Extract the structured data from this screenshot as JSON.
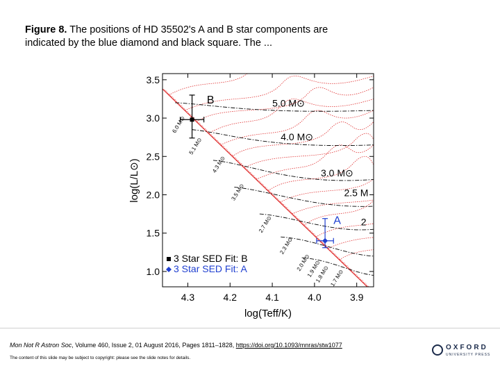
{
  "caption": {
    "label": "Figure 8.",
    "text": "The positions of HD 35502's A and B star components are indicated by the blue diamond and black square. The ..."
  },
  "chart_data": {
    "type": "scatter",
    "title": "",
    "xlabel": "log(Teff/K)",
    "ylabel": "log(L/L⊙)",
    "xlim": [
      4.36,
      3.86
    ],
    "ylim": [
      0.8,
      3.58
    ],
    "x_ticks": [
      4.3,
      4.2,
      4.1,
      4.0,
      3.9
    ],
    "x_tick_labels": [
      "4.3",
      "4.2",
      "4.1",
      "4.0",
      "3.9"
    ],
    "y_ticks": [
      1.0,
      1.5,
      2.0,
      2.5,
      3.0,
      3.5
    ],
    "y_tick_labels": [
      "1.0",
      "1.5",
      "2.0",
      "2.5",
      "3.0",
      "3.5"
    ],
    "series": [
      {
        "name": "3 Star SED Fit: B",
        "marker": "square",
        "color": "#000000",
        "x": 4.29,
        "y": 2.98,
        "xerr": [
          0.028,
          0.028
        ],
        "yerr": [
          0.24,
          0.32
        ]
      },
      {
        "name": "3 Star SED Fit: A",
        "marker": "diamond",
        "color": "#1f3fd0",
        "x": 3.975,
        "y": 1.4,
        "xerr": [
          0.02,
          0.02
        ],
        "yerr": [
          0.09,
          0.29
        ]
      }
    ],
    "component_labels": [
      {
        "text": "B",
        "x": 4.255,
        "y": 3.19
      },
      {
        "text": "A",
        "x": 3.955,
        "y": 1.62
      }
    ],
    "track_labels_right": [
      {
        "text": "5.0 M⊙",
        "x": 4.1,
        "y": 3.15
      },
      {
        "text": "4.0 M⊙",
        "x": 4.08,
        "y": 2.71
      },
      {
        "text": "3.0 M⊙",
        "x": 3.985,
        "y": 2.24
      },
      {
        "text": "2.5 M",
        "x": 3.93,
        "y": 1.98
      },
      {
        "text": "2",
        "x": 3.89,
        "y": 1.6
      }
    ],
    "zams_mass_labels": [
      {
        "text": "6.0 M⊙",
        "x": 4.33,
        "y": 2.8
      },
      {
        "text": "5.1 M⊙",
        "x": 4.29,
        "y": 2.52
      },
      {
        "text": "4.3 M⊙",
        "x": 4.235,
        "y": 2.28
      },
      {
        "text": "3.5 M⊙",
        "x": 4.19,
        "y": 1.92
      },
      {
        "text": "2.7 M⊙",
        "x": 4.125,
        "y": 1.5
      },
      {
        "text": "2.3 M⊙",
        "x": 4.075,
        "y": 1.22
      },
      {
        "text": "2.0 M⊙",
        "x": 4.035,
        "y": 1.0
      },
      {
        "text": "1.9 M⊙",
        "x": 4.01,
        "y": 0.92
      },
      {
        "text": "1.8 M⊙",
        "x": 3.99,
        "y": 0.85
      },
      {
        "text": "1.7 M⊙",
        "x": 3.955,
        "y": 0.8
      }
    ],
    "legend": {
      "position": "bottom-left",
      "entries": [
        "3 Star SED Fit: B",
        "3 Star SED Fit: A"
      ]
    },
    "grid": false,
    "colors": {
      "isochrones": "#e03030",
      "tracks": "#000000",
      "star_a": "#1f3fd0",
      "star_b": "#000000"
    }
  },
  "footer": {
    "journal": "Mon Not R Astron Soc",
    "details": ", Volume 460, Issue 2, 01 August 2016, Pages 1811–1828, ",
    "doi": "https://doi.org/10.1093/mnras/stw1077",
    "copyright": "The content of this slide may be subject to copyright: please see the slide notes for details.",
    "logo_word": "OXFORD",
    "logo_sub": "UNIVERSITY PRESS"
  }
}
